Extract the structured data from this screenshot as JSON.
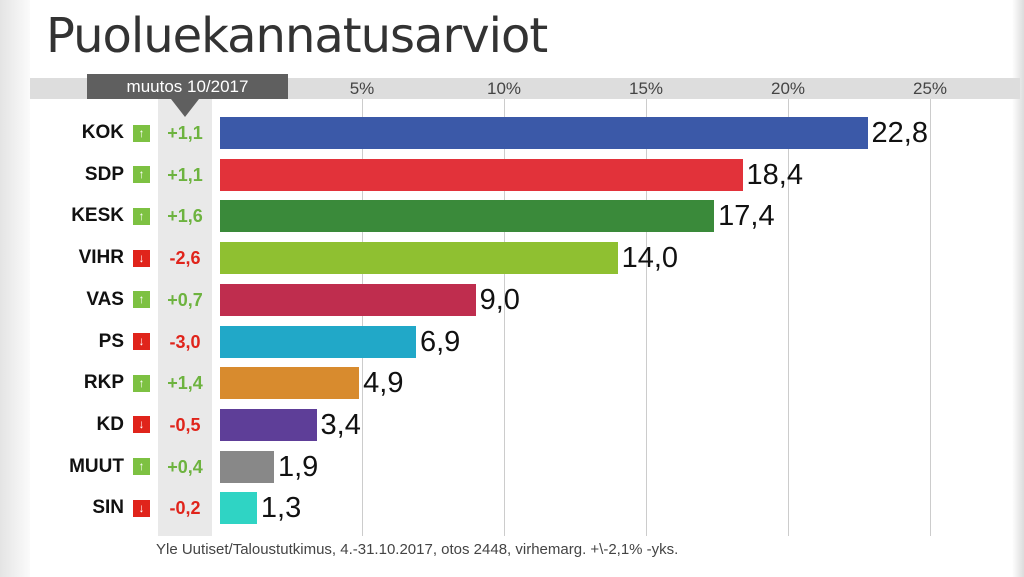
{
  "chart_data": {
    "type": "bar",
    "orientation": "horizontal",
    "title": "Puoluekannatusarviot",
    "change_header": "muutos 10/2017",
    "xlim": [
      0,
      25
    ],
    "x_ticks": [
      "5%",
      "10%",
      "15%",
      "20%",
      "25%"
    ],
    "x_tick_values": [
      5,
      10,
      15,
      20,
      25
    ],
    "categories": [
      "KOK",
      "SDP",
      "KESK",
      "VIHR",
      "VAS",
      "PS",
      "RKP",
      "KD",
      "MUUT",
      "SIN"
    ],
    "values": [
      22.8,
      18.4,
      17.4,
      14.0,
      9.0,
      6.9,
      4.9,
      3.4,
      1.9,
      1.3
    ],
    "value_labels": [
      "22,8",
      "18,4",
      "17,4",
      "14,0",
      "9,0",
      "6,9",
      "4,9",
      "3,4",
      "1,9",
      "1,3"
    ],
    "changes": [
      "+1,1",
      "+1,1",
      "+1,6",
      "-2,6",
      "+0,7",
      "-3,0",
      "+1,4",
      "-0,5",
      "+0,4",
      "-0,2"
    ],
    "change_direction": [
      "up",
      "up",
      "up",
      "down",
      "up",
      "down",
      "up",
      "down",
      "up",
      "down"
    ],
    "colors": [
      "#3b59a8",
      "#e2323a",
      "#3a8a3a",
      "#8fc031",
      "#bf2d4e",
      "#21a8c8",
      "#d88b2e",
      "#5e3e98",
      "#888888",
      "#2fd4c4"
    ],
    "grid": true,
    "source": "Yle Uutiset/Taloustutkimus, 4.-31.10.2017, otos 2448, virhemarg. +\\-2,1% -yks."
  },
  "icons": {
    "up": "arrow-up-icon",
    "down": "arrow-down-icon"
  }
}
